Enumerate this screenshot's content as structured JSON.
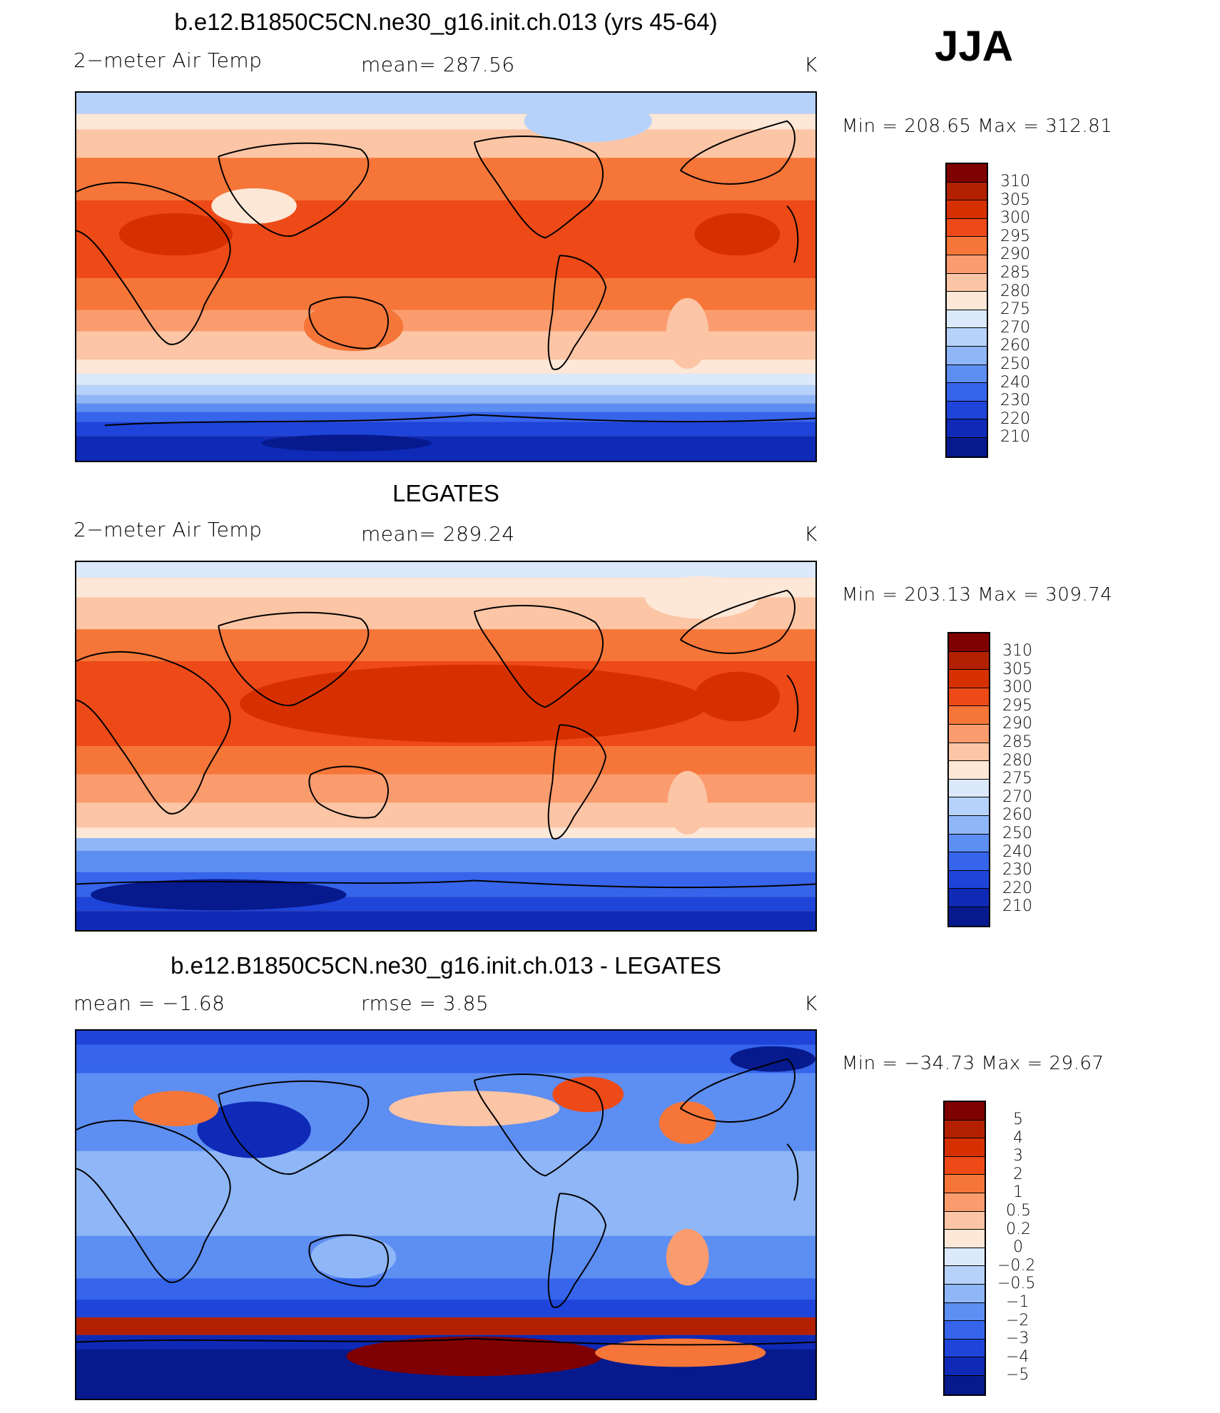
{
  "season": "JJA",
  "palette_temp": [
    "#7f0000",
    "#b22000",
    "#d73000",
    "#ed4a17",
    "#f57638",
    "#fb9c6f",
    "#fcc5a5",
    "#fde7d7",
    "#dbe9fb",
    "#b7d2fa",
    "#8fb6f7",
    "#5d8ef2",
    "#3665ec",
    "#1e44da",
    "#0e2ab7",
    "#061a8e"
  ],
  "palette_diff": [
    "#7f0000",
    "#b22000",
    "#d73000",
    "#ed4a17",
    "#f57638",
    "#fb9c6f",
    "#fcc5a5",
    "#fde7d7",
    "#dbe9fb",
    "#b7d2fa",
    "#8fb6f7",
    "#5d8ef2",
    "#3665ec",
    "#1e44da",
    "#0e2ab7",
    "#061a8e"
  ],
  "panels": [
    {
      "title": "b.e12.B1850C5CN.ne30_g16.init.ch.013 (yrs 45-64)",
      "left_label": "2−meter Air Temp",
      "center_label": "mean=  287.56",
      "units": "K",
      "minmax": "Min  =  208.65  Max  =  312.81",
      "colorbar_labels": [
        "310",
        "305",
        "300",
        "295",
        "290",
        "285",
        "280",
        "275",
        "270",
        "260",
        "250",
        "240",
        "230",
        "220",
        "210"
      ],
      "kind": "model"
    },
    {
      "title": "LEGATES",
      "left_label": "2−meter Air Temp",
      "center_label": "mean=  289.24",
      "units": "K",
      "minmax": "Min  =  203.13  Max  =  309.74",
      "colorbar_labels": [
        "310",
        "305",
        "300",
        "295",
        "290",
        "285",
        "280",
        "275",
        "270",
        "260",
        "250",
        "240",
        "230",
        "220",
        "210"
      ],
      "kind": "obs"
    },
    {
      "title": "b.e12.B1850C5CN.ne30_g16.init.ch.013 - LEGATES",
      "left_label": "mean  =    −1.68",
      "center_label": "rmse  =     3.85",
      "units": "K",
      "minmax": "Min  =  −34.73  Max  =    29.67",
      "colorbar_labels": [
        "5",
        "4",
        "3",
        "2",
        "1",
        "0.5",
        "0.2",
        "0",
        "−0.2",
        "−0.5",
        "−1",
        "−2",
        "−3",
        "−4",
        "−5"
      ],
      "kind": "diff"
    }
  ]
}
